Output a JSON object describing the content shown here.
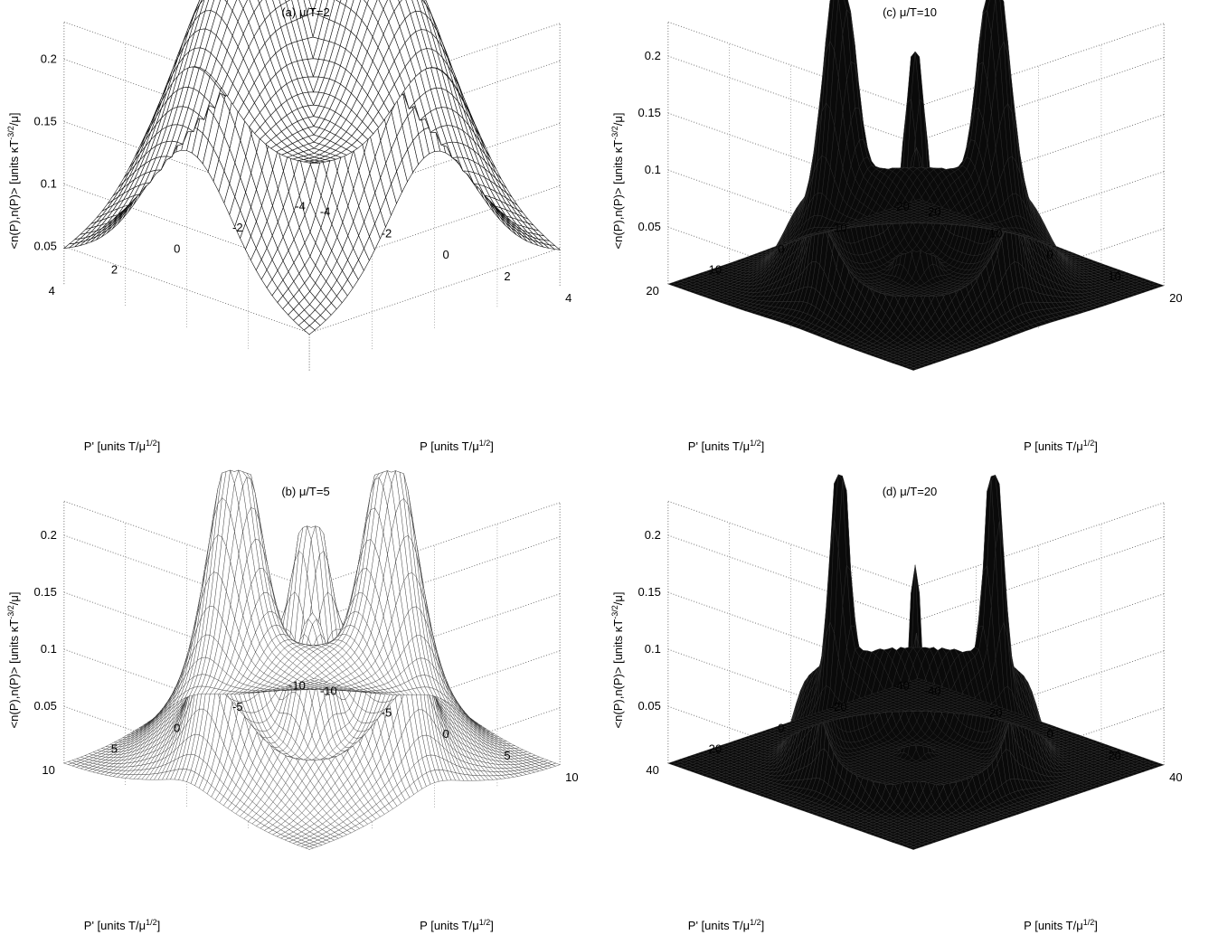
{
  "chart_data": [
    {
      "type": "surface",
      "title": "(a) μ/T=2",
      "mu_over_T": 2,
      "zlabel": "<n(P),n(P)> [units κT^{-3/2}/μ]",
      "xlabel": "P [units T/μ^{1/2}]",
      "ylabel": "P' [units T/μ^{1/2}]",
      "xlim": [
        -4,
        4
      ],
      "ylim": [
        -4,
        4
      ],
      "zlim": [
        0.02,
        0.23
      ],
      "xticks": [
        "-4",
        "-2",
        "0",
        "2",
        "4"
      ],
      "yticks": [
        "-4",
        "-2",
        "0",
        "2",
        "4"
      ],
      "zticks": [
        "0.05",
        "0.1",
        "0.15",
        "0.2"
      ],
      "grid": true,
      "peaks": [
        {
          "location": "P'-axis edge (P=0, P'=±a)",
          "z": 0.2
        },
        {
          "location": "P-axis edge (P'=0, P=±a)",
          "z": 0.2
        },
        {
          "location": "center-back",
          "z": 0.23
        },
        {
          "location": "center-front",
          "z": 0.19
        }
      ],
      "corner_value": 0.03,
      "style": "mesh"
    },
    {
      "type": "surface",
      "title": "(b) μ/T=5",
      "mu_over_T": 5,
      "zlabel": "<n(P),n(P)> [units κT^{-3/2}/μ]",
      "xlabel": "P [units T/μ^{1/2}]",
      "ylabel": "P' [units T/μ^{1/2}]",
      "xlim": [
        -10,
        10
      ],
      "ylim": [
        -10,
        10
      ],
      "zlim": [
        0,
        0.23
      ],
      "xticks": [
        "-10",
        "-5",
        "0",
        "5",
        "10"
      ],
      "yticks": [
        "-10",
        "-5",
        "0",
        "5",
        "10"
      ],
      "zticks": [
        "0.05",
        "0.1",
        "0.15",
        "0.2"
      ],
      "grid": true,
      "peaks": [
        {
          "location": "P'-axis edge",
          "z": 0.2
        },
        {
          "location": "P-axis edge",
          "z": 0.2
        },
        {
          "location": "center-back",
          "z": 0.23
        },
        {
          "location": "center-front",
          "z": 0.15
        }
      ],
      "corner_value": 0.0,
      "style": "mesh"
    },
    {
      "type": "surface",
      "title": "(c) μ/T=10",
      "mu_over_T": 10,
      "zlabel": "<n(P),n(P)> [units κT^{-3/2}/μ]",
      "xlabel": "P [units T/μ^{1/2}]",
      "ylabel": "P' [units T/μ^{1/2}]",
      "xlim": [
        -20,
        20
      ],
      "ylim": [
        -20,
        20
      ],
      "zlim": [
        0,
        0.23
      ],
      "xticks": [
        "-20",
        "-10",
        "0",
        "10",
        "20"
      ],
      "yticks": [
        "-20",
        "-10",
        "0",
        "10",
        "20"
      ],
      "zticks": [
        "0.05",
        "0.1",
        "0.15",
        "0.2"
      ],
      "grid": true,
      "peaks": [
        {
          "location": "P'-axis edge",
          "z": 0.2
        },
        {
          "location": "P-axis edge",
          "z": 0.2
        },
        {
          "location": "center-back",
          "z": 0.23
        },
        {
          "location": "center-front",
          "z": 0.15
        }
      ],
      "corner_value": 0.0,
      "style": "mesh"
    },
    {
      "type": "surface",
      "title": "(d) μ/T=20",
      "mu_over_T": 20,
      "zlabel": "<n(P),n(P)> [units κT^{-3/2}/μ]",
      "xlabel": "P [units T/μ^{1/2}]",
      "ylabel": "P' [units T/μ^{1/2}]",
      "xlim": [
        -40,
        40
      ],
      "ylim": [
        -40,
        40
      ],
      "zlim": [
        0,
        0.23
      ],
      "xticks": [
        "-40",
        "-20",
        "0",
        "20",
        "40"
      ],
      "yticks": [
        "-40",
        "-20",
        "0",
        "20",
        "40"
      ],
      "zticks": [
        "0.05",
        "0.1",
        "0.15",
        "0.2"
      ],
      "grid": true,
      "peaks": [
        {
          "location": "P'-axis edge",
          "z": 0.2
        },
        {
          "location": "P-axis edge",
          "z": 0.2
        },
        {
          "location": "center-back",
          "z": 0.23
        },
        {
          "location": "center-front",
          "z": 0.15
        }
      ],
      "corner_value": 0.0,
      "style": "mesh"
    }
  ]
}
